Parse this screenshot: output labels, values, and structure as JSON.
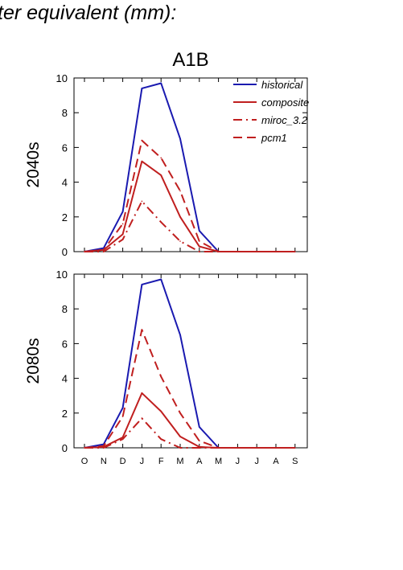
{
  "header": {
    "title": "ter equivalent (mm):"
  },
  "colors": {
    "historical": "#1a1ab0",
    "future": "#c01f1f"
  },
  "chart_data": [
    {
      "type": "line",
      "title": "A1B",
      "ylabel": "2040s",
      "xlabel": "",
      "categories": [
        "O",
        "N",
        "D",
        "J",
        "F",
        "M",
        "A",
        "M",
        "J",
        "J",
        "A",
        "S"
      ],
      "ylim": [
        0,
        10
      ],
      "yticks": [
        0,
        2,
        4,
        6,
        8,
        10
      ],
      "grid": false,
      "legend": "top-right",
      "series": [
        {
          "name": "historical",
          "style": "solid",
          "color": "#1a1ab0",
          "values": [
            0.0,
            0.2,
            2.3,
            9.4,
            9.7,
            6.5,
            1.2,
            0.0,
            0.0,
            0.0,
            0.0,
            0.0
          ]
        },
        {
          "name": "composite",
          "style": "solid",
          "color": "#c01f1f",
          "values": [
            0.0,
            0.1,
            1.0,
            5.2,
            4.4,
            2.0,
            0.3,
            0.0,
            0.0,
            0.0,
            0.0,
            0.0
          ]
        },
        {
          "name": "miroc_3.2",
          "style": "dashdot",
          "color": "#c01f1f",
          "values": [
            0.0,
            0.0,
            0.7,
            2.9,
            1.7,
            0.6,
            0.0,
            0.0,
            0.0,
            0.0,
            0.0,
            0.0
          ]
        },
        {
          "name": "pcm1",
          "style": "dashed",
          "color": "#c01f1f",
          "values": [
            0.0,
            0.1,
            1.6,
            6.4,
            5.4,
            3.5,
            0.6,
            0.0,
            0.0,
            0.0,
            0.0,
            0.0
          ]
        }
      ]
    },
    {
      "type": "line",
      "title": "",
      "ylabel": "2080s",
      "xlabel": "",
      "categories": [
        "O",
        "N",
        "D",
        "J",
        "F",
        "M",
        "A",
        "M",
        "J",
        "J",
        "A",
        "S"
      ],
      "ylim": [
        0,
        10
      ],
      "yticks": [
        0,
        2,
        4,
        6,
        8,
        10
      ],
      "grid": false,
      "legend": "none",
      "series": [
        {
          "name": "historical",
          "style": "solid",
          "color": "#1a1ab0",
          "values": [
            0.0,
            0.2,
            2.3,
            9.4,
            9.7,
            6.5,
            1.2,
            0.0,
            0.0,
            0.0,
            0.0,
            0.0
          ]
        },
        {
          "name": "composite",
          "style": "solid",
          "color": "#c01f1f",
          "values": [
            0.0,
            0.05,
            0.6,
            3.15,
            2.1,
            0.65,
            0.05,
            0.0,
            0.0,
            0.0,
            0.0,
            0.0
          ]
        },
        {
          "name": "miroc_3.2",
          "style": "dashdot",
          "color": "#c01f1f",
          "values": [
            0.0,
            0.0,
            0.5,
            1.7,
            0.5,
            0.0,
            0.0,
            0.0,
            0.0,
            0.0,
            0.0,
            0.0
          ]
        },
        {
          "name": "pcm1",
          "style": "dashed",
          "color": "#c01f1f",
          "values": [
            0.0,
            0.1,
            1.8,
            6.8,
            4.1,
            2.0,
            0.4,
            0.0,
            0.0,
            0.0,
            0.0,
            0.0
          ]
        }
      ]
    }
  ]
}
